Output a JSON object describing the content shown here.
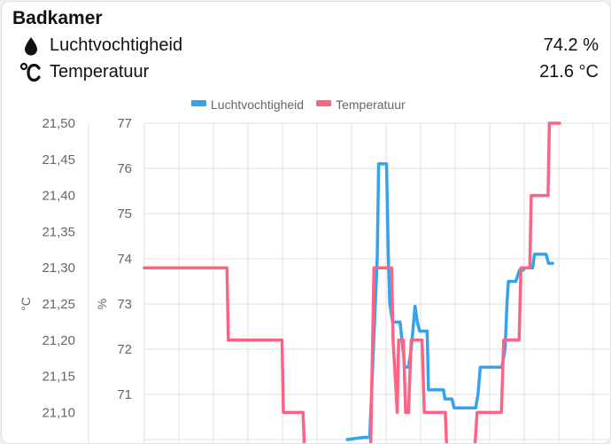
{
  "card": {
    "title": "Badkamer",
    "entities": [
      {
        "name": "Luchtvochtigheid",
        "value": "74.2 %",
        "icon": "water-drop-icon"
      },
      {
        "name": "Temperatuur",
        "value": "21.6 °C",
        "icon": "celsius-icon"
      }
    ]
  },
  "colors": {
    "humidity": "#36a2eb",
    "temperature": "#ff6384",
    "grid": "#e0e0e0"
  },
  "chart_data": {
    "type": "line",
    "legend_position": "top-center",
    "grid": true,
    "y_left": {
      "label": "°C",
      "ticks": [
        "21,50",
        "21,45",
        "21,40",
        "21,35",
        "21,30",
        "21,25",
        "21,20",
        "21,15",
        "21,10"
      ],
      "range": [
        21.05,
        21.5
      ]
    },
    "y_right": {
      "label": "%",
      "ticks": [
        "77",
        "76",
        "75",
        "74",
        "73",
        "72",
        "71"
      ],
      "range": [
        70,
        77
      ]
    },
    "x_range": [
      0,
      100
    ],
    "series": [
      {
        "name": "Luchtvochtigheid",
        "axis": "humidity",
        "step": false,
        "points": [
          [
            43.5,
            70
          ],
          [
            47.0,
            70.05
          ],
          [
            48.3,
            70.05
          ],
          [
            49.9,
            74.0
          ],
          [
            50.2,
            76.1
          ],
          [
            51.9,
            76.1
          ],
          [
            52.3,
            74.0
          ],
          [
            52.6,
            73.0
          ],
          [
            53.2,
            72.6
          ],
          [
            54.8,
            72.6
          ],
          [
            55.4,
            72.0
          ],
          [
            55.8,
            71.6
          ],
          [
            56.6,
            71.6
          ],
          [
            57.2,
            72.0
          ],
          [
            58.0,
            72.95
          ],
          [
            58.5,
            72.6
          ],
          [
            59.0,
            72.4
          ],
          [
            60.6,
            72.4
          ],
          [
            60.9,
            71.1
          ],
          [
            64.1,
            71.1
          ],
          [
            64.4,
            70.9
          ],
          [
            65.9,
            70.9
          ],
          [
            66.4,
            70.7
          ],
          [
            71.0,
            70.7
          ],
          [
            71.5,
            71.0
          ],
          [
            72.0,
            71.6
          ],
          [
            76.6,
            71.6
          ],
          [
            77.3,
            72.0
          ],
          [
            77.7,
            73.0
          ],
          [
            78.0,
            73.5
          ],
          [
            79.6,
            73.5
          ],
          [
            80.4,
            73.75
          ],
          [
            81.2,
            73.75
          ],
          [
            81.5,
            73.8
          ],
          [
            83.2,
            73.8
          ],
          [
            83.6,
            74.1
          ],
          [
            86.1,
            74.1
          ],
          [
            86.6,
            73.9
          ],
          [
            87.5,
            73.9
          ]
        ]
      },
      {
        "name": "Temperatuur",
        "axis": "temperature",
        "step": true,
        "points": [
          [
            0,
            21.3
          ],
          [
            17.7,
            21.3
          ],
          [
            18.0,
            21.2
          ],
          [
            29.5,
            21.2
          ],
          [
            29.8,
            21.1
          ],
          [
            34.0,
            21.1
          ],
          [
            34.3,
            21.05
          ],
          [
            48.5,
            21.05
          ],
          [
            49.2,
            21.3
          ],
          [
            53.0,
            21.3
          ],
          [
            53.3,
            21.2
          ],
          [
            54.2,
            21.1
          ],
          [
            54.5,
            21.2
          ],
          [
            55.5,
            21.2
          ],
          [
            56.0,
            21.1
          ],
          [
            56.6,
            21.1
          ],
          [
            57.2,
            21.2
          ],
          [
            59.5,
            21.2
          ],
          [
            60.0,
            21.1
          ],
          [
            64.5,
            21.1
          ],
          [
            64.8,
            21.05
          ],
          [
            70.8,
            21.05
          ],
          [
            71.3,
            21.1
          ],
          [
            76.5,
            21.1
          ],
          [
            77.0,
            21.2
          ],
          [
            80.3,
            21.2
          ],
          [
            80.7,
            21.3
          ],
          [
            82.6,
            21.3
          ],
          [
            82.9,
            21.4
          ],
          [
            86.5,
            21.4
          ],
          [
            86.8,
            21.5
          ],
          [
            89.0,
            21.5
          ]
        ]
      }
    ]
  }
}
